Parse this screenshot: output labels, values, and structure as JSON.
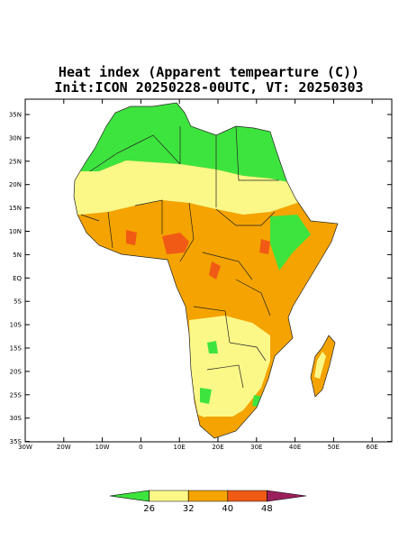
{
  "title": "Heat index (Apparent tempearture (C))",
  "subtitle": "Init:ICON 20250228-00UTC, VT: 20250303",
  "map": {
    "lon_labels": [
      "30W",
      "20W",
      "10W",
      "0",
      "10E",
      "20E",
      "30E",
      "40E",
      "50E",
      "60E"
    ],
    "lat_labels": [
      "35N",
      "30N",
      "25N",
      "20N",
      "15N",
      "10N",
      "5N",
      "EQ",
      "5S",
      "10S",
      "15S",
      "20S",
      "25S",
      "30S",
      "35S"
    ]
  },
  "colorbar": {
    "levels": [
      26,
      32,
      40,
      48
    ],
    "colors": [
      "#3ee43e",
      "#fbf888",
      "#f4a300",
      "#f05a14",
      "#9a1f5a"
    ]
  }
}
